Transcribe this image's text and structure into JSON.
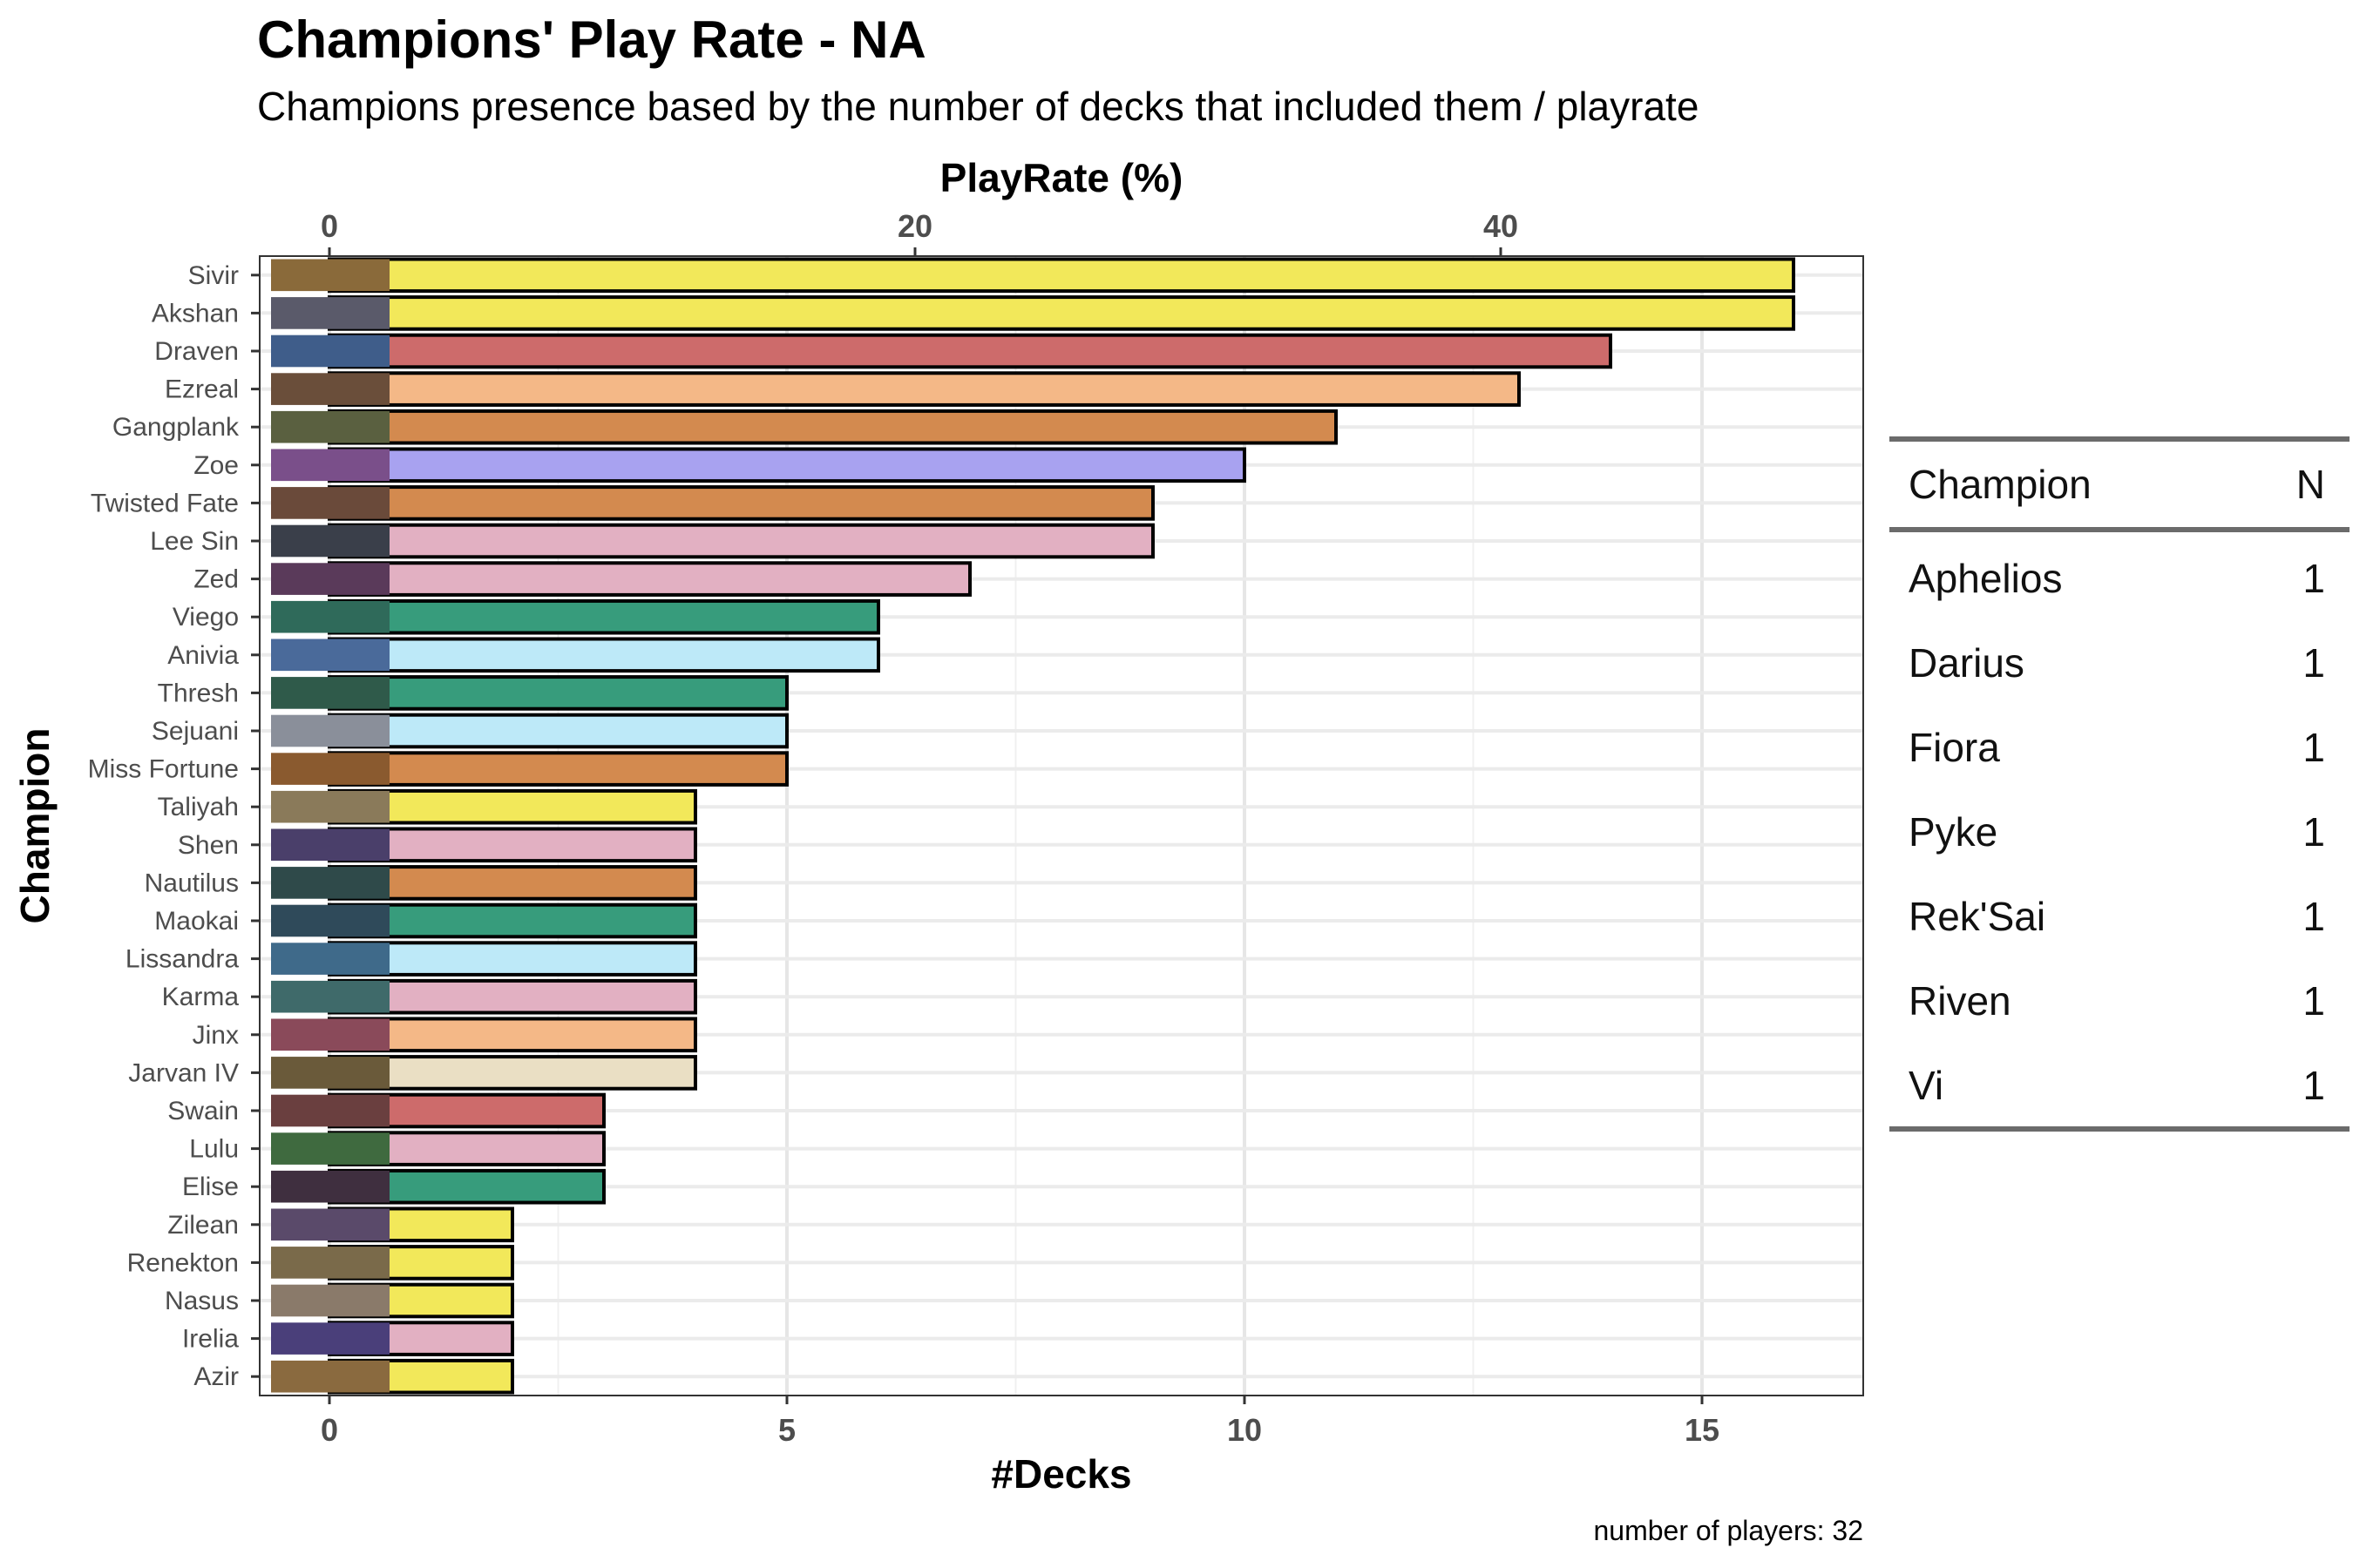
{
  "chart_data": {
    "type": "bar",
    "orientation": "horizontal",
    "title": "Champions' Play Rate - NA",
    "subtitle": "Champions presence based by the number of decks that included them / playrate",
    "xlabel": "#Decks",
    "x2label": "PlayRate (%)",
    "ylabel": "Champion",
    "caption": "number of players: 32",
    "xlim": [
      0,
      17
    ],
    "x_ticks": [
      "0",
      "5",
      "10",
      "15"
    ],
    "x2_ticks": [
      "0",
      "20",
      "40"
    ],
    "x2_tick_values": [
      0,
      20,
      40
    ],
    "decks_per_percent": 0.32,
    "grid": true,
    "categories": [
      "Sivir",
      "Akshan",
      "Draven",
      "Ezreal",
      "Gangplank",
      "Zoe",
      "Twisted Fate",
      "Lee Sin",
      "Zed",
      "Viego",
      "Anivia",
      "Thresh",
      "Sejuani",
      "Miss Fortune",
      "Taliyah",
      "Shen",
      "Nautilus",
      "Maokai",
      "Lissandra",
      "Karma",
      "Jinx",
      "Jarvan IV",
      "Swain",
      "Lulu",
      "Elise",
      "Zilean",
      "Renekton",
      "Nasus",
      "Irelia",
      "Azir"
    ],
    "values": [
      16,
      16,
      14,
      13,
      11,
      10,
      9,
      9,
      7,
      6,
      6,
      5,
      5,
      5,
      4,
      4,
      4,
      4,
      4,
      4,
      4,
      4,
      3,
      3,
      3,
      2,
      2,
      2,
      2,
      2
    ],
    "colors": [
      "#f2e85a",
      "#f2e85a",
      "#cd6b6b",
      "#f4b887",
      "#d38a4f",
      "#a8a2f0",
      "#d38a4f",
      "#e2b0c2",
      "#e2b0c2",
      "#379c7c",
      "#bde9f8",
      "#379c7c",
      "#bde9f8",
      "#d38a4f",
      "#f2e85a",
      "#e2b0c2",
      "#d38a4f",
      "#379c7c",
      "#bde9f8",
      "#e2b0c2",
      "#f4b887",
      "#eadfc4",
      "#cd6b6b",
      "#e2b0c2",
      "#379c7c",
      "#f2e85a",
      "#f2e85a",
      "#f2e85a",
      "#e2b0c2",
      "#f2e85a"
    ],
    "thumb_colors": [
      "#8a6a3a",
      "#5a5a6a",
      "#3f5d8a",
      "#6a4e3a",
      "#5a6040",
      "#7a4f8a",
      "#6a4a3a",
      "#3a3f4a",
      "#5a3a5a",
      "#2f6a5a",
      "#4a6a9a",
      "#2f5a4a",
      "#8a8f9a",
      "#8a5a2f",
      "#8a7a5a",
      "#4a3f6a",
      "#2f4a4a",
      "#2f4a5a",
      "#3f6a8a",
      "#3f6a6a",
      "#8a4a5a",
      "#6a5a3a",
      "#6a3f3f",
      "#3f6a3f",
      "#3f2f3f",
      "#5a4a6a",
      "#7a6a4a",
      "#8a7a6a",
      "#4a3f7a",
      "#8a6a3f"
    ]
  },
  "table": {
    "headers": [
      "Champion",
      "N"
    ],
    "rows": [
      {
        "champion": "Aphelios",
        "n": "1"
      },
      {
        "champion": "Darius",
        "n": "1"
      },
      {
        "champion": "Fiora",
        "n": "1"
      },
      {
        "champion": "Pyke",
        "n": "1"
      },
      {
        "champion": "Rek'Sai",
        "n": "1"
      },
      {
        "champion": "Riven",
        "n": "1"
      },
      {
        "champion": "Vi",
        "n": "1"
      }
    ]
  }
}
